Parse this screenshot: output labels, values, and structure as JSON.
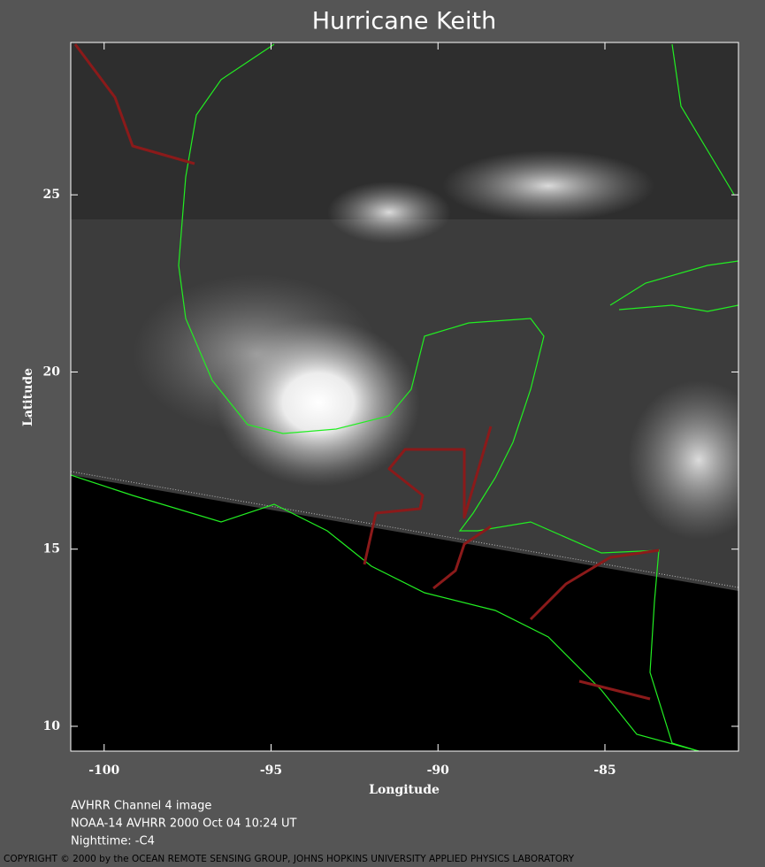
{
  "chart_data": {
    "type": "map",
    "title": "Hurricane Keith",
    "x_label": "Longitude",
    "y_label": "Latitude",
    "xlim": [
      -101,
      -81
    ],
    "ylim": [
      9.3,
      29.3
    ],
    "xticks": [
      -100,
      -95,
      -90,
      -85
    ],
    "yticks": [
      10,
      15,
      20,
      25
    ],
    "captions": [
      "AVHRR Channel 4 image",
      "NOAA-14 AVHRR 2000 Oct 04 10:24 UT",
      "Nighttime: -C4"
    ],
    "copyright": "COPYRIGHT © 2000 by the OCEAN REMOTE SENSING GROUP, JOHNS HOPKINS UNIVERSITY APPLIED PHYSICS LABORATORY"
  }
}
